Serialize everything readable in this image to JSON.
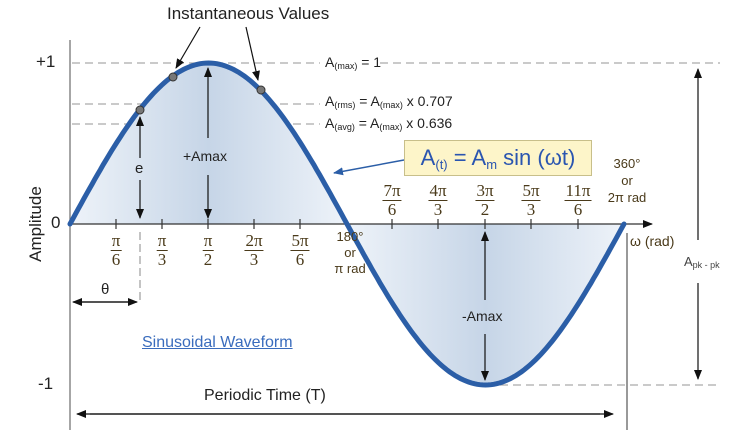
{
  "title": "Instantaneous Values",
  "axis": {
    "y_label": "Amplitude",
    "y_ticks": [
      "+1",
      "0",
      "-1"
    ],
    "x_label": "ω (rad)"
  },
  "annotations": {
    "amax_line": "A(max) = 1",
    "arms_line": "A(rms) = A(max) x 0.707",
    "aavg_line": "A(avg) = A(max) x 0.636",
    "pos_amax": "+Amax",
    "neg_amax": "-Amax",
    "e_label": "e",
    "theta_label": "θ",
    "half_period": [
      "180°",
      "or",
      "π rad"
    ],
    "full_period": [
      "360°",
      "or",
      "2π rad"
    ],
    "pk_pk": "Apk - pk",
    "periodic_time": "Periodic Time (T)",
    "caption_link": "Sinusoidal Waveform"
  },
  "formula": {
    "text": "A(t) = Am sin (ωt)"
  },
  "x_ticks": [
    {
      "num": "π",
      "den": "6"
    },
    {
      "num": "π",
      "den": "3"
    },
    {
      "num": "π",
      "den": "2"
    },
    {
      "num": "2π",
      "den": "3"
    },
    {
      "num": "5π",
      "den": "6"
    },
    {
      "num": "7π",
      "den": "6"
    },
    {
      "num": "4π",
      "den": "3"
    },
    {
      "num": "3π",
      "den": "2"
    },
    {
      "num": "5π",
      "den": "3"
    },
    {
      "num": "11π",
      "den": "6"
    }
  ],
  "colors": {
    "curve": "#2b5ea7",
    "fill": "#c9d7e8",
    "formula_bg": "#fdf5c9",
    "formula_text": "#2a55b0",
    "link": "#3a6cbd"
  },
  "chart_data": {
    "type": "line",
    "title": "Sinusoidal Waveform",
    "xlabel": "ω (rad)",
    "ylabel": "Amplitude",
    "x": [
      "0",
      "π/6",
      "π/3",
      "π/2",
      "2π/3",
      "5π/6",
      "π",
      "7π/6",
      "4π/3",
      "3π/2",
      "5π/3",
      "11π/6",
      "2π"
    ],
    "values": [
      0,
      0.5,
      0.866,
      1,
      0.866,
      0.5,
      0,
      -0.5,
      -0.866,
      -1,
      -0.866,
      -0.5,
      0
    ],
    "ylim": [
      -1,
      1
    ],
    "reference_lines": {
      "A(max)": 1,
      "A(rms)": 0.707,
      "A(avg)": 0.636
    },
    "function": "A(t) = Am sin(ωt)"
  }
}
